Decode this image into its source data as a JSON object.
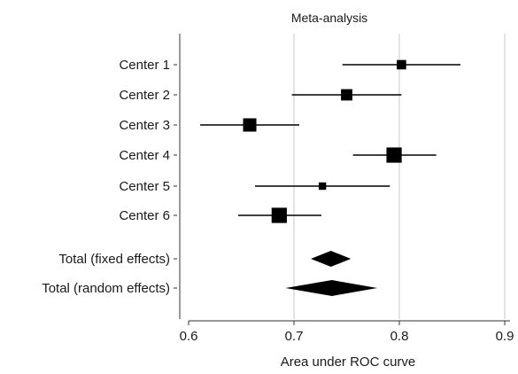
{
  "chart_data": {
    "type": "forest",
    "title": "Meta-analysis",
    "xlabel": "Area under ROC curve",
    "xlim": [
      0.6,
      0.9
    ],
    "xticks": [
      0.6,
      0.7,
      0.8,
      0.9
    ],
    "xtick_labels": [
      "0.6",
      "0.7",
      "0.8",
      "0.9"
    ],
    "gridlines": "vertical at ticks",
    "studies": [
      {
        "label": "Center 1",
        "estimate": 0.802,
        "ci": [
          0.746,
          0.858
        ],
        "weight": 3
      },
      {
        "label": "Center 2",
        "estimate": 0.75,
        "ci": [
          0.698,
          0.802
        ],
        "weight": 4
      },
      {
        "label": "Center 3",
        "estimate": 0.658,
        "ci": [
          0.611,
          0.705
        ],
        "weight": 5
      },
      {
        "label": "Center 4",
        "estimate": 0.795,
        "ci": [
          0.756,
          0.835
        ],
        "weight": 6
      },
      {
        "label": "Center 5",
        "estimate": 0.727,
        "ci": [
          0.663,
          0.791
        ],
        "weight": 2
      },
      {
        "label": "Center 6",
        "estimate": 0.686,
        "ci": [
          0.647,
          0.726
        ],
        "weight": 6
      }
    ],
    "pooled": [
      {
        "label": "Total (fixed effects)",
        "estimate": 0.735,
        "ci": [
          0.716,
          0.754
        ]
      },
      {
        "label": "Total (random effects)",
        "estimate": 0.736,
        "ci": [
          0.692,
          0.779
        ]
      }
    ]
  }
}
